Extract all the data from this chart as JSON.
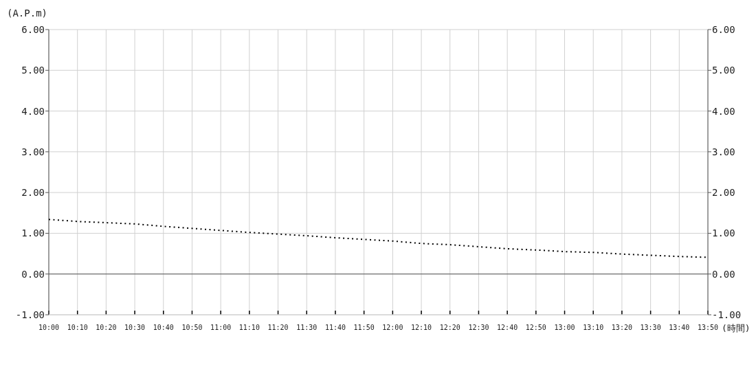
{
  "chart_data": {
    "type": "line",
    "xlabel": "(時間)",
    "ylabel": "(A.P.m)",
    "x": [
      10,
      10.1667,
      10.3333,
      10.5,
      10.6667,
      10.8333,
      11,
      11.1667,
      11.3333,
      11.5,
      11.6667,
      11.8333,
      12,
      12.1667,
      12.3333,
      12.5,
      12.6667,
      12.8333,
      13,
      13.1667,
      13.3333,
      13.5,
      13.6667,
      13.8333
    ],
    "series": [
      {
        "color": "#000000",
        "values": [
          1.34,
          1.29,
          1.26,
          1.23,
          1.17,
          1.12,
          1.07,
          1.02,
          0.98,
          0.94,
          0.89,
          0.85,
          0.81,
          0.75,
          0.72,
          0.67,
          0.62,
          0.59,
          0.55,
          0.53,
          0.49,
          0.46,
          0.43,
          0.41
        ]
      }
    ],
    "xlim": [
      10,
      13.8333
    ],
    "xticks": [
      {
        "value": 10,
        "label": "10:00"
      },
      {
        "value": 10.1667,
        "label": "10:10"
      },
      {
        "value": 10.3333,
        "label": "10:20"
      },
      {
        "value": 10.5,
        "label": "10:30"
      },
      {
        "value": 10.6667,
        "label": "10:40"
      },
      {
        "value": 10.8333,
        "label": "10:50"
      },
      {
        "value": 11,
        "label": "11:00"
      },
      {
        "value": 11.1667,
        "label": "11:10"
      },
      {
        "value": 11.3333,
        "label": "11:20"
      },
      {
        "value": 11.5,
        "label": "11:30"
      },
      {
        "value": 11.6667,
        "label": "11:40"
      },
      {
        "value": 11.8333,
        "label": "11:50"
      },
      {
        "value": 12,
        "label": "12:00"
      },
      {
        "value": 12.1667,
        "label": "12:10"
      },
      {
        "value": 12.3333,
        "label": "12:20"
      },
      {
        "value": 12.5,
        "label": "12:30"
      },
      {
        "value": 12.6667,
        "label": "12:40"
      },
      {
        "value": 12.8333,
        "label": "12:50"
      },
      {
        "value": 13,
        "label": "13:00"
      },
      {
        "value": 13.1667,
        "label": "13:10"
      },
      {
        "value": 13.3333,
        "label": "13:20"
      },
      {
        "value": 13.5,
        "label": "13:30"
      },
      {
        "value": 13.6667,
        "label": "13:40"
      },
      {
        "value": 13.8333,
        "label": "13:50"
      }
    ],
    "ylim": [
      -1,
      6
    ],
    "yticks": [
      {
        "value": -1,
        "label": "-1.00"
      },
      {
        "value": 0,
        "label": "0.00"
      },
      {
        "value": 1,
        "label": "1.00"
      },
      {
        "value": 2,
        "label": "2.00"
      },
      {
        "value": 3,
        "label": "3.00"
      },
      {
        "value": 4,
        "label": "4.00"
      },
      {
        "value": 5,
        "label": "5.00"
      },
      {
        "value": 6,
        "label": "6.00"
      }
    ],
    "y2lim": [
      -1,
      6
    ],
    "y2ticks": [
      {
        "value": -1,
        "label": "-1.00"
      },
      {
        "value": 0,
        "label": "0.00"
      },
      {
        "value": 1,
        "label": "1.00"
      },
      {
        "value": 2,
        "label": "2.00"
      },
      {
        "value": 3,
        "label": "3.00"
      },
      {
        "value": 4,
        "label": "4.00"
      },
      {
        "value": 5,
        "label": "5.00"
      },
      {
        "value": 6,
        "label": "6.00"
      }
    ],
    "ref_lines": [
      {
        "axis": "y",
        "value": 0,
        "color": "#555555"
      }
    ],
    "grid": true,
    "marker": "none",
    "line_style": "dotted"
  }
}
